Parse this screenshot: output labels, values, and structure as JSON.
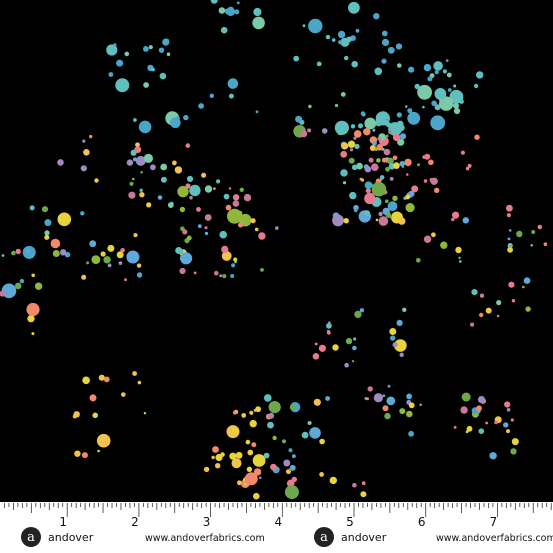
{
  "ruler": {
    "labels": [
      "1",
      "2",
      "3",
      "4",
      "5",
      "6",
      "7"
    ]
  },
  "brand": [
    {
      "name": "andover",
      "url": "www.andoverfabrics.com"
    },
    {
      "name": "andover",
      "url": "www.andoverfabrics.com"
    }
  ]
}
